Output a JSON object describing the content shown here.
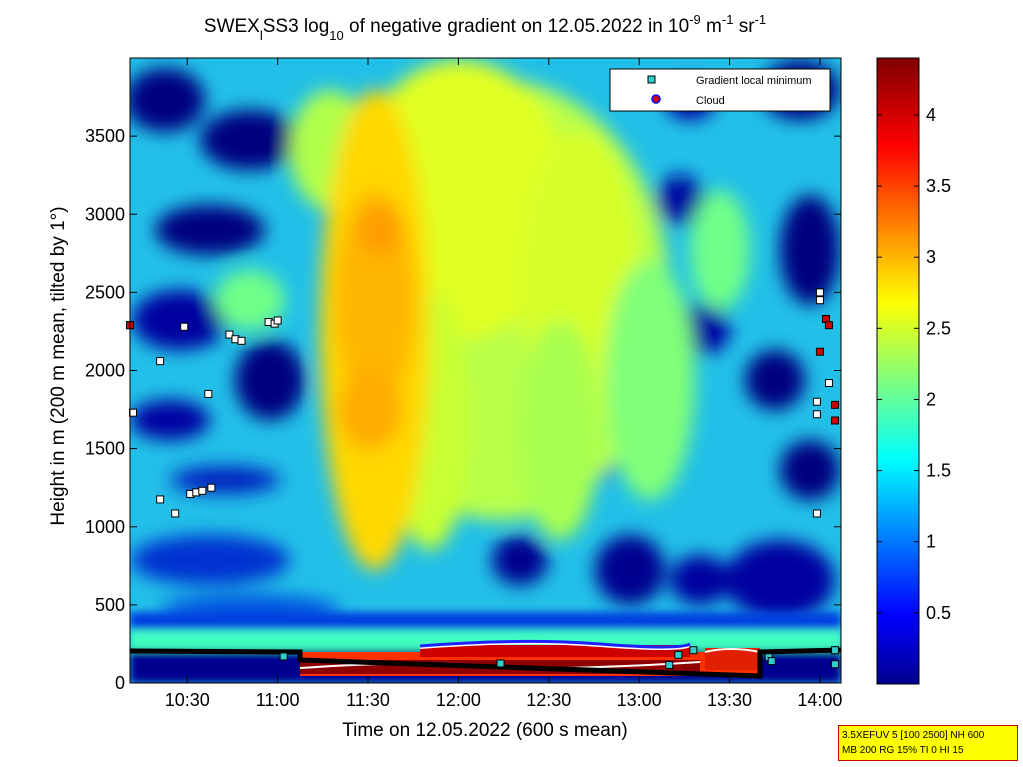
{
  "chart_data": {
    "type": "heatmap",
    "title": {
      "prefix": "SWEX",
      "prefix_sub": "l",
      "mid1": "SS3 log",
      "log_sub": "10",
      "mid2": " of negative gradient on 12.05.2022 in 10",
      "exp1": "-9",
      "mid3": " m",
      "exp2": "-1",
      "mid4": " sr",
      "exp3": "-1"
    },
    "xlabel": "Time on 12.05.2022 (600 s mean)",
    "ylabel": "Height in m (200 m mean, tilted by 1°)",
    "xlim": [
      "10:11",
      "14:07"
    ],
    "ylim": [
      0,
      4000
    ],
    "x_ticks": [
      "10:30",
      "11:00",
      "11:30",
      "12:00",
      "12:30",
      "13:00",
      "13:30",
      "14:00"
    ],
    "y_ticks": [
      "0",
      "500",
      "1000",
      "1500",
      "2000",
      "2500",
      "3000",
      "3500"
    ],
    "colorbar": {
      "colormap": "jet",
      "range": [
        0,
        4.4
      ],
      "ticks": [
        "0.5",
        "1",
        "1.5",
        "2",
        "2.5",
        "3",
        "3.5",
        "4"
      ]
    },
    "legend": {
      "position": "top-right",
      "entries": [
        {
          "label": "Gradient local minimum",
          "marker": "square",
          "color": "#33cccc"
        },
        {
          "label": "Cloud",
          "marker": "circle",
          "color": "#cc0000",
          "edge": "#0000ff"
        }
      ]
    },
    "grid": false,
    "series": [
      {
        "name": "Gradient local minimum",
        "points": [
          [
            "10:11",
            2290
          ],
          [
            "10:12",
            1730
          ],
          [
            "10:21",
            2060
          ],
          [
            "10:29",
            2280
          ],
          [
            "10:21",
            1175
          ],
          [
            "10:26",
            1085
          ],
          [
            "10:31",
            1210
          ],
          [
            "10:33",
            1220
          ],
          [
            "10:35",
            1230
          ],
          [
            "10:38",
            1250
          ],
          [
            "10:37",
            1850
          ],
          [
            "10:44",
            2230
          ],
          [
            "10:46",
            2200
          ],
          [
            "10:48",
            2190
          ],
          [
            "10:57",
            2310
          ],
          [
            "10:59",
            2300
          ],
          [
            "11:00",
            2320
          ],
          [
            "14:00",
            2500
          ],
          [
            "14:00",
            2450
          ],
          [
            "13:59",
            1800
          ],
          [
            "13:59",
            1720
          ],
          [
            "14:03",
            1920
          ],
          [
            "13:59",
            1085
          ],
          [
            "14:05",
            210
          ],
          [
            "14:05",
            120
          ],
          [
            "11:02",
            170
          ],
          [
            "12:14",
            125
          ],
          [
            "13:10",
            115
          ],
          [
            "13:13",
            180
          ],
          [
            "13:18",
            210
          ],
          [
            "13:43",
            165
          ],
          [
            "13:44",
            140
          ]
        ]
      },
      {
        "name": "Cloud",
        "points": [
          [
            "10:11",
            2290
          ],
          [
            "14:02",
            2330
          ],
          [
            "14:03",
            2290
          ],
          [
            "14:00",
            2120
          ],
          [
            "14:05",
            1780
          ],
          [
            "14:05",
            1680
          ]
        ]
      }
    ],
    "notable_features": [
      {
        "label": "strong gradient layer",
        "time_range": [
          "11:05",
          "13:45"
        ],
        "height_range": [
          20,
          230
        ],
        "value": 4.2
      }
    ]
  },
  "info_box": {
    "line1": "3.5XEFUV 5 [100 2500] NH 600",
    "line2": "MB 200 RG 15% TI 0 HI 15"
  }
}
